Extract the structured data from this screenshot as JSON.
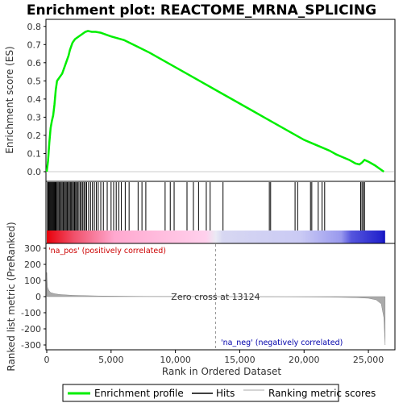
{
  "chart_data": {
    "type": "line",
    "title": "Enrichment plot: REACTOME_MRNA_SPLICING",
    "xlabel": "Rank in Ordered Dataset",
    "xlim": [
      0,
      27000
    ],
    "x_ticks": [
      0,
      5000,
      10000,
      15000,
      20000,
      25000
    ],
    "x_tick_labels": [
      "0",
      "5,000",
      "10,000",
      "15,000",
      "20,000",
      "25,000"
    ],
    "es_panel": {
      "ylabel": "Enrichment score (ES)",
      "ylim": [
        -0.04,
        0.83
      ],
      "y_ticks": [
        0.0,
        0.1,
        0.2,
        0.3,
        0.4,
        0.5,
        0.6,
        0.7,
        0.8
      ],
      "y_tick_labels": [
        "0.0",
        "0.1",
        "0.2",
        "0.3",
        "0.4",
        "0.5",
        "0.6",
        "0.7",
        "0.8"
      ],
      "series": [
        {
          "name": "Enrichment profile",
          "color": "#00ee00",
          "x": [
            0,
            100,
            200,
            300,
            400,
            500,
            600,
            700,
            800,
            900,
            1000,
            1200,
            1400,
            1500,
            1600,
            1700,
            1800,
            1900,
            2000,
            2100,
            2200,
            2400,
            2600,
            2800,
            3000,
            3200,
            3500,
            3800,
            4200,
            4600,
            5000,
            5500,
            6000,
            7000,
            8000,
            9000,
            10000,
            11000,
            12000,
            13000,
            14000,
            15000,
            16000,
            17000,
            18000,
            19000,
            20000,
            20500,
            21000,
            21500,
            22000,
            22500,
            23000,
            23500,
            24000,
            24300,
            24500,
            24700,
            25000,
            25500,
            26000,
            26200
          ],
          "y": [
            0.0,
            0.06,
            0.16,
            0.24,
            0.28,
            0.31,
            0.37,
            0.45,
            0.5,
            0.51,
            0.52,
            0.54,
            0.58,
            0.6,
            0.62,
            0.64,
            0.67,
            0.69,
            0.71,
            0.72,
            0.73,
            0.74,
            0.75,
            0.76,
            0.77,
            0.775,
            0.77,
            0.77,
            0.765,
            0.755,
            0.745,
            0.735,
            0.725,
            0.69,
            0.655,
            0.615,
            0.575,
            0.535,
            0.495,
            0.455,
            0.415,
            0.375,
            0.335,
            0.295,
            0.255,
            0.215,
            0.175,
            0.16,
            0.145,
            0.13,
            0.115,
            0.095,
            0.08,
            0.065,
            0.045,
            0.04,
            0.05,
            0.065,
            0.055,
            0.035,
            0.01,
            0.0
          ]
        }
      ]
    },
    "hits_panel": {
      "name": "Hits",
      "color": "#000000",
      "hit_ranks": [
        60,
        120,
        180,
        240,
        300,
        360,
        420,
        480,
        540,
        600,
        660,
        720,
        800,
        880,
        960,
        1040,
        1120,
        1200,
        1280,
        1360,
        1440,
        1520,
        1600,
        1680,
        1760,
        1840,
        1920,
        2000,
        2080,
        2160,
        2240,
        2320,
        2400,
        2500,
        2600,
        2700,
        2800,
        2900,
        3000,
        3100,
        3250,
        3400,
        3550,
        3700,
        3850,
        4000,
        4200,
        4400,
        4700,
        5000,
        5200,
        5400,
        5600,
        5800,
        6100,
        6400,
        7100,
        7400,
        7700,
        9200,
        9600,
        9900,
        10900,
        11400,
        11800,
        12400,
        12700,
        13700,
        17300,
        17400,
        19300,
        19500,
        20500,
        20600,
        21100,
        21400,
        21600,
        24400,
        24500,
        24600,
        24700
      ]
    },
    "rank_metric_panel": {
      "name": "Ranking metric scores",
      "ylabel": "Ranked list metric (PreRanked)",
      "ylim": [
        -330,
        330
      ],
      "y_ticks": [
        300,
        200,
        100,
        0,
        -100,
        -200,
        -300
      ],
      "y_tick_labels": [
        "300",
        "200",
        "100",
        "0",
        "-100",
        "-200",
        "-300"
      ],
      "zero_cross_rank": 13124,
      "zero_cross_label": "Zero cross at 13124",
      "pos_label": "'na_pos' (positively correlated)",
      "neg_label": "'na_neg' (negatively correlated)",
      "pos_color": "#cc0000",
      "neg_color": "#0000aa",
      "metric_x": [
        0,
        50,
        150,
        300,
        600,
        1000,
        2000,
        4000,
        8000,
        13124,
        18000,
        22000,
        24000,
        25000,
        25600,
        26000,
        26200,
        26300
      ],
      "metric_y": [
        150,
        60,
        40,
        25,
        18,
        13,
        8,
        4,
        1,
        0,
        -1,
        -3,
        -6,
        -10,
        -20,
        -45,
        -130,
        -300
      ]
    },
    "legend": {
      "items": [
        {
          "label": "Enrichment profile",
          "color": "#00ee00"
        },
        {
          "label": "Hits",
          "color": "#000000"
        },
        {
          "label": "Ranking metric scores",
          "color": "#aaaaaa"
        }
      ]
    }
  }
}
